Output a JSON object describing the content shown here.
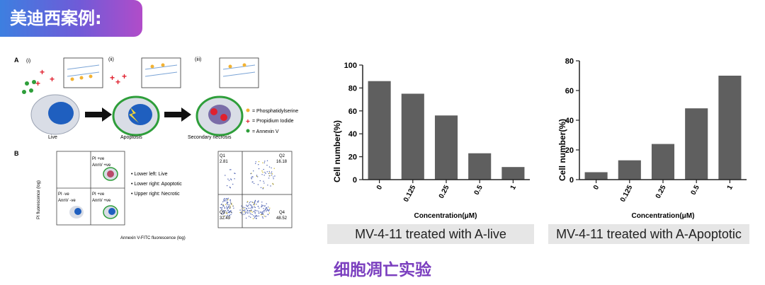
{
  "header": {
    "title": "美迪西案例:"
  },
  "figure": {
    "panel_a": {
      "letter": "A",
      "stages": [
        "(i)",
        "(ii)",
        "(iii)"
      ],
      "cell_labels": [
        "Live",
        "Apoptosis",
        "Secondary necrosis"
      ],
      "legend": [
        "= Phosphatidylserine",
        "= Propidium Iodide",
        "= Annexin V"
      ],
      "colors": {
        "arrow": "#111111",
        "nucleus": "#1f5fbf",
        "cell": "#d9dde6",
        "annexin": "#2e9e3a",
        "pi": "#e0202e",
        "ps": "#f2b233"
      }
    },
    "panel_b": {
      "letter": "B",
      "y_label": "PI fluorescence (log)",
      "x_label": "Annexin V-FITC fluorescence (log)",
      "quadrant_labels": [
        "PI +ve",
        "AnnV +ve",
        "PI -ve",
        "AnnV -ve",
        "PI +ve",
        "AnnV +ve"
      ],
      "notes": [
        "• Lower left: Live",
        "• Lower right: Apoptotic",
        "• Upper right: Necrotic"
      ],
      "flow": {
        "q1": "Q1",
        "q1v": "2.81",
        "q2": "Q2",
        "q2v": "16.18",
        "q3": "Q3",
        "q3v": "32.49",
        "q4": "Q4",
        "q4v": "48.52"
      }
    }
  },
  "chart_data": [
    {
      "type": "bar",
      "categories": [
        "0",
        "0.125",
        "0.25",
        "0.5",
        "1"
      ],
      "values": [
        86,
        75,
        56,
        23,
        11
      ],
      "ylabel": "Cell number(%)",
      "xlabel": "Concentration(μM)",
      "ylim": [
        0,
        100
      ],
      "yticks": [
        0,
        20,
        40,
        60,
        80,
        100
      ],
      "bar_color": "#5f5f5f",
      "caption": "MV-4-11 treated with A-live"
    },
    {
      "type": "bar",
      "categories": [
        "0",
        "0.125",
        "0.25",
        "0.5",
        "1"
      ],
      "values": [
        5,
        13,
        24,
        48,
        70
      ],
      "ylabel": "Cell number(%)",
      "xlabel": "Concentration(μM)",
      "ylim": [
        0,
        80
      ],
      "yticks": [
        0,
        20,
        40,
        60,
        80
      ],
      "bar_color": "#5f5f5f",
      "caption": "MV-4-11 treated with A-Apoptotic"
    }
  ],
  "footer": {
    "text": "细胞凋亡实验"
  }
}
